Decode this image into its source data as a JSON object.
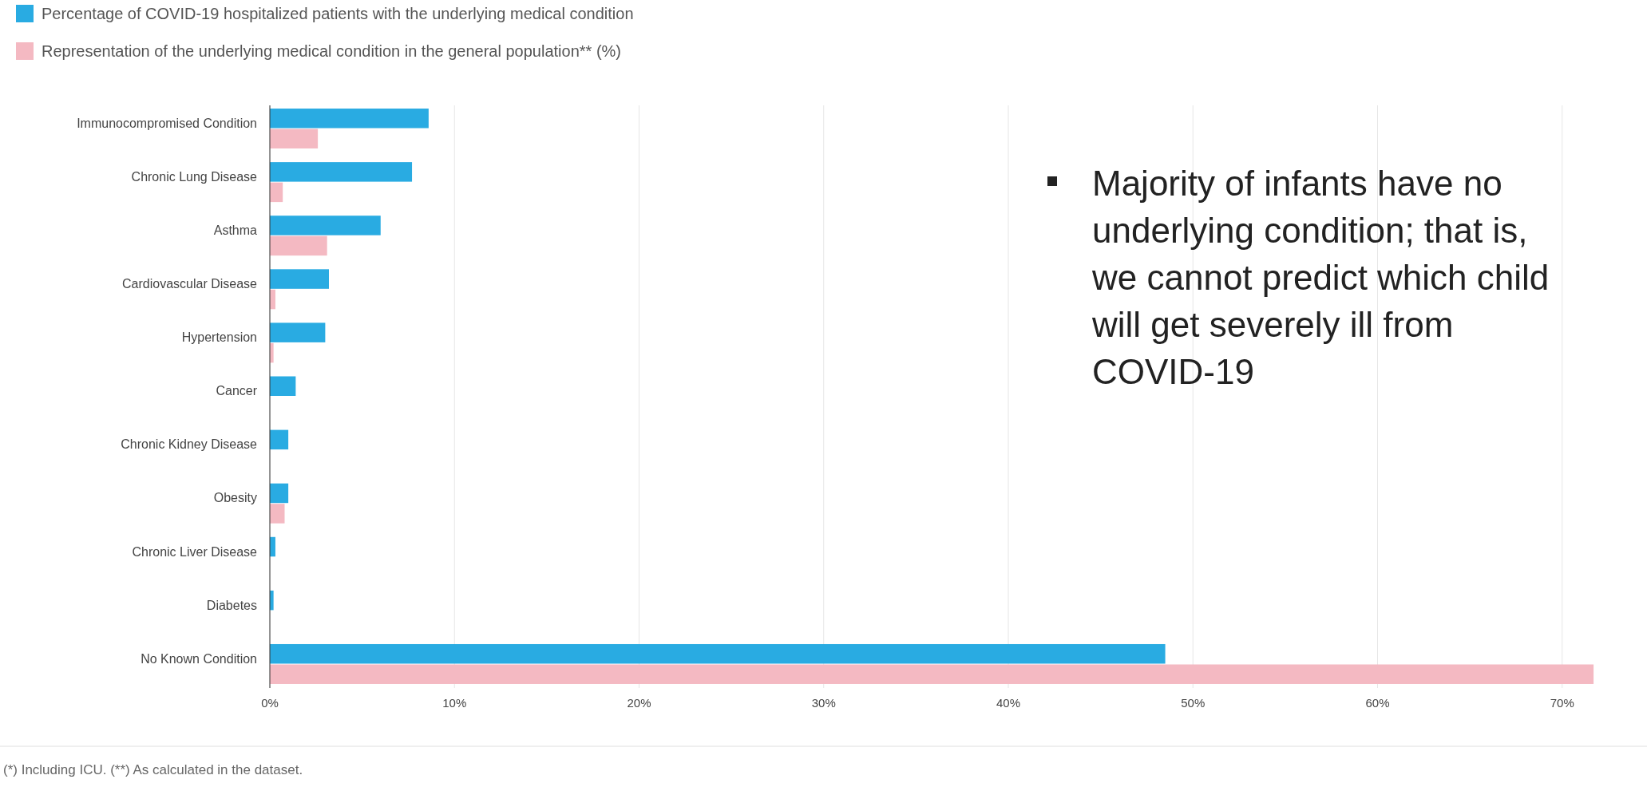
{
  "chart_data": {
    "type": "bar",
    "orientation": "horizontal",
    "categories": [
      "Immunocompromised Condition",
      "Chronic Lung Disease",
      "Asthma",
      "Cardiovascular Disease",
      "Hypertension",
      "Cancer",
      "Chronic Kidney Disease",
      "Obesity",
      "Chronic Liver Disease",
      "Diabetes",
      "No Known Condition"
    ],
    "series": [
      {
        "name": "Percentage of COVID-19 hospitalized patients with the underlying medical condition",
        "color": "#29abe2",
        "values": [
          8.6,
          7.7,
          6.0,
          3.2,
          3.0,
          1.4,
          1.0,
          1.0,
          0.3,
          0.2,
          48.5
        ]
      },
      {
        "name": "Representation of the underlying medical condition in the general population** (%)",
        "color": "#f4b9c2",
        "values": [
          2.6,
          0.7,
          3.1,
          0.3,
          0.2,
          null,
          null,
          0.8,
          null,
          null,
          71.7
        ]
      }
    ],
    "xlim": [
      0,
      72
    ],
    "xticks": [
      {
        "value": 0,
        "label": "0%"
      },
      {
        "value": 10,
        "label": "10%"
      },
      {
        "value": 20,
        "label": "20%"
      },
      {
        "value": 30,
        "label": "30%"
      },
      {
        "value": 40,
        "label": "40%"
      },
      {
        "value": 50,
        "label": "50%"
      },
      {
        "value": 60,
        "label": "60%"
      },
      {
        "value": 70,
        "label": "70%"
      }
    ],
    "grid": "x",
    "legend": "top left",
    "annotations": [
      "Majority of infants have no underlying condition; that is, we cannot predict which child will get severely ill from COVID-19",
      "(*) Including ICU. (**) As calculated in the dataset."
    ]
  }
}
